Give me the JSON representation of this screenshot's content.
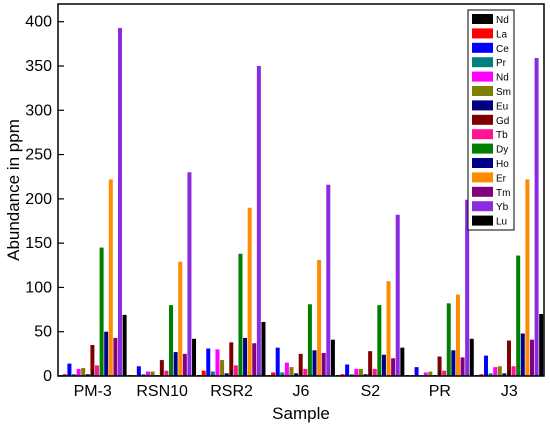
{
  "chart_data": {
    "type": "bar",
    "title": "",
    "xlabel": "Sample",
    "ylabel": "Abundance in ppm",
    "ylim": [
      0,
      420
    ],
    "yticks": [
      0,
      50,
      100,
      150,
      200,
      250,
      300,
      350,
      400
    ],
    "grid": false,
    "legend_position": "top-right",
    "categories": [
      "PM-3",
      "RSN10",
      "RSR2",
      "J6",
      "S2",
      "PR",
      "J3"
    ],
    "series": [
      {
        "name": "Nd",
        "color": "#000000",
        "values": [
          1,
          1,
          1,
          1,
          1,
          1,
          1
        ]
      },
      {
        "name": "La",
        "color": "#ff0000",
        "values": [
          2,
          1,
          6,
          4,
          2,
          1,
          2
        ]
      },
      {
        "name": "Ce",
        "color": "#0000ff",
        "values": [
          14,
          11,
          31,
          32,
          13,
          10,
          23
        ]
      },
      {
        "name": "Pr",
        "color": "#008080",
        "values": [
          2,
          2,
          5,
          4,
          2,
          1,
          3
        ]
      },
      {
        "name": "Nd",
        "color": "#ff00ff",
        "values": [
          8,
          5,
          30,
          15,
          8,
          4,
          10
        ]
      },
      {
        "name": "Sm",
        "color": "#808000",
        "values": [
          9,
          5,
          18,
          10,
          8,
          5,
          11
        ]
      },
      {
        "name": "Eu",
        "color": "#000080",
        "values": [
          2,
          1,
          3,
          3,
          2,
          1,
          3
        ]
      },
      {
        "name": "Gd",
        "color": "#800000",
        "values": [
          35,
          18,
          38,
          25,
          28,
          22,
          40
        ]
      },
      {
        "name": "Tb",
        "color": "#ff1493",
        "values": [
          12,
          6,
          12,
          8,
          8,
          6,
          11
        ]
      },
      {
        "name": "Dy",
        "color": "#008000",
        "values": [
          145,
          80,
          138,
          81,
          80,
          82,
          136
        ]
      },
      {
        "name": "Ho",
        "color": "#00008b",
        "values": [
          50,
          27,
          43,
          29,
          24,
          29,
          48
        ]
      },
      {
        "name": "Er",
        "color": "#ff8c00",
        "values": [
          222,
          129,
          190,
          131,
          107,
          92,
          222
        ]
      },
      {
        "name": "Tm",
        "color": "#800080",
        "values": [
          43,
          25,
          37,
          26,
          20,
          21,
          41
        ]
      },
      {
        "name": "Yb",
        "color": "#8a2be2",
        "values": [
          393,
          230,
          350,
          216,
          182,
          199,
          359
        ]
      },
      {
        "name": "Lu",
        "color": "#000000",
        "values": [
          69,
          42,
          61,
          41,
          32,
          42,
          70
        ]
      }
    ]
  }
}
